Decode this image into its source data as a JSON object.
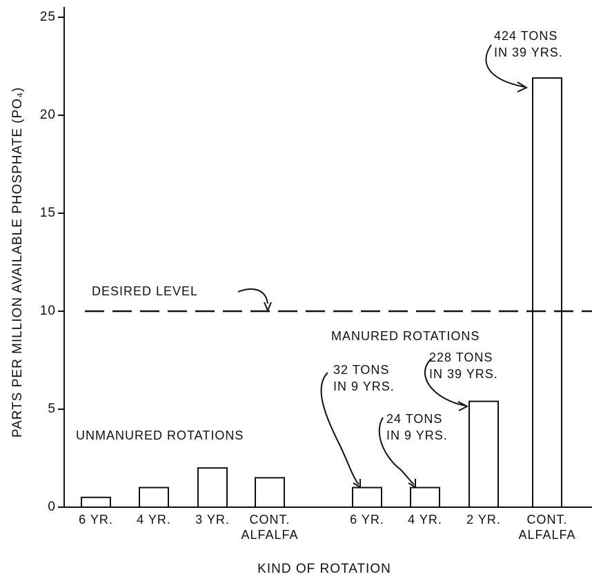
{
  "chart_data": {
    "type": "bar",
    "y_label": "PARTS PER MILLION AVAILABLE PHOSPHATE (PO₄)",
    "x_label": "KIND OF ROTATION",
    "categories": [
      "6 YR.",
      "4 YR.",
      "3 YR.",
      "CONT. ALFALFA",
      "6 YR.",
      "4 YR.",
      "2 YR.",
      "CONT. ALFALFA"
    ],
    "values": [
      0.5,
      1,
      2,
      1.5,
      1,
      1,
      5.4,
      21.9
    ],
    "color": "#ffffff",
    "ylim": [
      0,
      25
    ],
    "yticks": [
      0,
      5,
      10,
      15,
      20,
      25
    ],
    "reference_line": {
      "value": 10,
      "label": "DESIRED LEVEL"
    },
    "group_labels": [
      "UNMANURED ROTATIONS",
      "MANURED ROTATIONS"
    ],
    "annotations": [
      [
        "32 TONS",
        "IN 9 YRS."
      ],
      [
        "24 TONS",
        "IN 9 YRS."
      ],
      [
        "228 TONS",
        "IN 39 YRS."
      ],
      [
        "424 TONS",
        "IN 39 YRS."
      ]
    ]
  }
}
